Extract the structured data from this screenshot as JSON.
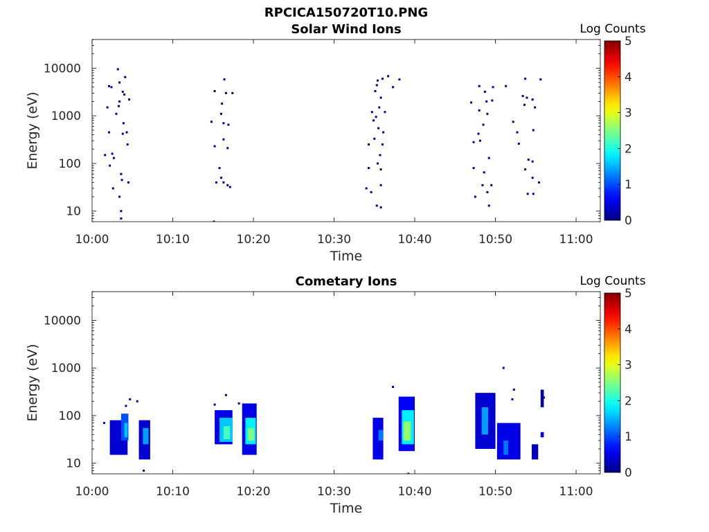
{
  "figure": {
    "title": "RPCICA150720T10.PNG"
  },
  "chart_data": [
    {
      "type": "heatmap",
      "title": "Solar Wind Ions",
      "xlabel": "Time",
      "ylabel": "Energy (eV)",
      "x_ticks": [
        "10:00",
        "10:10",
        "10:20",
        "10:30",
        "10:40",
        "10:50",
        "11:00"
      ],
      "y_ticks": [
        "10",
        "100",
        "1000",
        "10000"
      ],
      "y_scale": "log",
      "ylim": [
        6,
        40000
      ],
      "xlim": [
        "10:00",
        "11:03"
      ],
      "colorbar": {
        "label": "Log Counts",
        "ticks": [
          "0",
          "1",
          "2",
          "3",
          "4",
          "5"
        ],
        "range": [
          0,
          5
        ],
        "colormap": "jet"
      },
      "points": [
        {
          "t": 3.2,
          "e": 9500,
          "v": 0.1
        },
        {
          "t": 2.1,
          "e": 4200,
          "v": 0.1
        },
        {
          "t": 2.4,
          "e": 4000,
          "v": 0.1
        },
        {
          "t": 3.4,
          "e": 5000,
          "v": 0.1
        },
        {
          "t": 4.1,
          "e": 6500,
          "v": 0.1
        },
        {
          "t": 3.8,
          "e": 3200,
          "v": 0.1
        },
        {
          "t": 4.0,
          "e": 2800,
          "v": 0.1
        },
        {
          "t": 3.4,
          "e": 2000,
          "v": 0.1
        },
        {
          "t": 4.6,
          "e": 2200,
          "v": 0.1
        },
        {
          "t": 1.9,
          "e": 1500,
          "v": 0.1
        },
        {
          "t": 3.3,
          "e": 1600,
          "v": 0.1
        },
        {
          "t": 3.0,
          "e": 1100,
          "v": 0.1
        },
        {
          "t": 3.9,
          "e": 700,
          "v": 0.1
        },
        {
          "t": 2.1,
          "e": 450,
          "v": 0.1
        },
        {
          "t": 3.8,
          "e": 420,
          "v": 0.1
        },
        {
          "t": 4.3,
          "e": 450,
          "v": 0.1
        },
        {
          "t": 4.4,
          "e": 250,
          "v": 0.1
        },
        {
          "t": 1.6,
          "e": 150,
          "v": 0.1
        },
        {
          "t": 2.5,
          "e": 160,
          "v": 0.1
        },
        {
          "t": 2.7,
          "e": 130,
          "v": 0.1
        },
        {
          "t": 2.2,
          "e": 90,
          "v": 0.1
        },
        {
          "t": 3.6,
          "e": 60,
          "v": 0.1
        },
        {
          "t": 3.7,
          "e": 45,
          "v": 0.1
        },
        {
          "t": 4.5,
          "e": 40,
          "v": 0.1
        },
        {
          "t": 2.6,
          "e": 30,
          "v": 0.1
        },
        {
          "t": 3.4,
          "e": 20,
          "v": 0.1
        },
        {
          "t": 3.6,
          "e": 10,
          "v": 0.1
        },
        {
          "t": 3.6,
          "e": 7,
          "v": 0.1
        },
        {
          "t": 15.2,
          "e": 3300,
          "v": 0.1
        },
        {
          "t": 16.4,
          "e": 5800,
          "v": 0.1
        },
        {
          "t": 16.6,
          "e": 3000,
          "v": 0.1
        },
        {
          "t": 17.4,
          "e": 3000,
          "v": 0.1
        },
        {
          "t": 16.1,
          "e": 1800,
          "v": 0.1
        },
        {
          "t": 16.0,
          "e": 1100,
          "v": 0.1
        },
        {
          "t": 14.8,
          "e": 750,
          "v": 0.1
        },
        {
          "t": 16.3,
          "e": 700,
          "v": 0.1
        },
        {
          "t": 16.9,
          "e": 650,
          "v": 0.1
        },
        {
          "t": 16.3,
          "e": 320,
          "v": 0.1
        },
        {
          "t": 15.2,
          "e": 230,
          "v": 0.1
        },
        {
          "t": 16.8,
          "e": 210,
          "v": 0.1
        },
        {
          "t": 15.8,
          "e": 80,
          "v": 0.1
        },
        {
          "t": 16.0,
          "e": 50,
          "v": 0.1
        },
        {
          "t": 16.3,
          "e": 40,
          "v": 0.1
        },
        {
          "t": 15.4,
          "e": 40,
          "v": 0.1
        },
        {
          "t": 16.8,
          "e": 35,
          "v": 0.1
        },
        {
          "t": 17.1,
          "e": 32,
          "v": 0.1
        },
        {
          "t": 15.1,
          "e": 6,
          "v": 0.1
        },
        {
          "t": 35.4,
          "e": 5500,
          "v": 0.1
        },
        {
          "t": 36.0,
          "e": 6000,
          "v": 0.1
        },
        {
          "t": 36.7,
          "e": 6800,
          "v": 0.1
        },
        {
          "t": 38.1,
          "e": 5800,
          "v": 0.1
        },
        {
          "t": 35.3,
          "e": 4400,
          "v": 0.1
        },
        {
          "t": 35.1,
          "e": 3300,
          "v": 0.1
        },
        {
          "t": 37.3,
          "e": 4000,
          "v": 0.1
        },
        {
          "t": 35.8,
          "e": 2400,
          "v": 0.1
        },
        {
          "t": 35.6,
          "e": 1500,
          "v": 0.1
        },
        {
          "t": 34.7,
          "e": 1200,
          "v": 0.1
        },
        {
          "t": 36.3,
          "e": 1200,
          "v": 0.1
        },
        {
          "t": 35.2,
          "e": 950,
          "v": 0.1
        },
        {
          "t": 34.9,
          "e": 800,
          "v": 0.1
        },
        {
          "t": 35.5,
          "e": 550,
          "v": 0.1
        },
        {
          "t": 36.1,
          "e": 450,
          "v": 0.1
        },
        {
          "t": 35.0,
          "e": 330,
          "v": 0.1
        },
        {
          "t": 34.3,
          "e": 250,
          "v": 0.1
        },
        {
          "t": 36.0,
          "e": 250,
          "v": 0.1
        },
        {
          "t": 35.7,
          "e": 150,
          "v": 0.1
        },
        {
          "t": 35.4,
          "e": 100,
          "v": 0.1
        },
        {
          "t": 34.3,
          "e": 80,
          "v": 0.1
        },
        {
          "t": 35.8,
          "e": 75,
          "v": 0.1
        },
        {
          "t": 34.0,
          "e": 30,
          "v": 0.1
        },
        {
          "t": 34.6,
          "e": 25,
          "v": 0.1
        },
        {
          "t": 35.8,
          "e": 35,
          "v": 0.1
        },
        {
          "t": 35.3,
          "e": 13,
          "v": 0.1
        },
        {
          "t": 35.8,
          "e": 12,
          "v": 0.1
        },
        {
          "t": 48.0,
          "e": 4200,
          "v": 0.1
        },
        {
          "t": 49.7,
          "e": 4000,
          "v": 0.1
        },
        {
          "t": 51.3,
          "e": 4200,
          "v": 0.1
        },
        {
          "t": 53.7,
          "e": 6000,
          "v": 0.1
        },
        {
          "t": 55.6,
          "e": 5800,
          "v": 0.1
        },
        {
          "t": 48.7,
          "e": 3200,
          "v": 0.1
        },
        {
          "t": 48.9,
          "e": 2000,
          "v": 0.1
        },
        {
          "t": 47.0,
          "e": 1900,
          "v": 0.1
        },
        {
          "t": 49.6,
          "e": 2100,
          "v": 0.1
        },
        {
          "t": 53.4,
          "e": 2600,
          "v": 0.1
        },
        {
          "t": 53.9,
          "e": 2400,
          "v": 0.1
        },
        {
          "t": 54.6,
          "e": 2200,
          "v": 0.1
        },
        {
          "t": 53.6,
          "e": 1700,
          "v": 0.1
        },
        {
          "t": 54.9,
          "e": 1500,
          "v": 0.1
        },
        {
          "t": 48.0,
          "e": 1300,
          "v": 0.1
        },
        {
          "t": 49.0,
          "e": 1100,
          "v": 0.1
        },
        {
          "t": 52.2,
          "e": 750,
          "v": 0.1
        },
        {
          "t": 48.5,
          "e": 650,
          "v": 0.1
        },
        {
          "t": 54.7,
          "e": 500,
          "v": 0.1
        },
        {
          "t": 52.7,
          "e": 450,
          "v": 0.1
        },
        {
          "t": 47.9,
          "e": 420,
          "v": 0.1
        },
        {
          "t": 47.3,
          "e": 280,
          "v": 0.1
        },
        {
          "t": 52.9,
          "e": 260,
          "v": 0.1
        },
        {
          "t": 48.1,
          "e": 300,
          "v": 0.1
        },
        {
          "t": 49.2,
          "e": 130,
          "v": 0.1
        },
        {
          "t": 54.1,
          "e": 120,
          "v": 0.1
        },
        {
          "t": 54.6,
          "e": 110,
          "v": 0.1
        },
        {
          "t": 47.3,
          "e": 80,
          "v": 0.1
        },
        {
          "t": 48.6,
          "e": 65,
          "v": 0.1
        },
        {
          "t": 53.7,
          "e": 75,
          "v": 0.1
        },
        {
          "t": 54.6,
          "e": 50,
          "v": 0.1
        },
        {
          "t": 55.4,
          "e": 40,
          "v": 0.1
        },
        {
          "t": 48.4,
          "e": 35,
          "v": 0.1
        },
        {
          "t": 49.5,
          "e": 35,
          "v": 0.1
        },
        {
          "t": 47.5,
          "e": 20,
          "v": 0.1
        },
        {
          "t": 49.0,
          "e": 25,
          "v": 0.1
        },
        {
          "t": 54.0,
          "e": 23,
          "v": 0.1
        },
        {
          "t": 54.7,
          "e": 23,
          "v": 0.1
        },
        {
          "t": 49.2,
          "e": 13,
          "v": 0.1
        }
      ]
    },
    {
      "type": "heatmap",
      "title": "Cometary Ions",
      "xlabel": "Time",
      "ylabel": "Energy (eV)",
      "x_ticks": [
        "10:00",
        "10:10",
        "10:20",
        "10:30",
        "10:40",
        "10:50",
        "11:00"
      ],
      "y_ticks": [
        "10",
        "100",
        "1000",
        "10000"
      ],
      "y_scale": "log",
      "ylim": [
        6,
        40000
      ],
      "xlim": [
        "10:00",
        "11:03"
      ],
      "colorbar": {
        "label": "Log Counts",
        "ticks": [
          "0",
          "1",
          "2",
          "3",
          "4",
          "5"
        ],
        "range": [
          0,
          5
        ],
        "colormap": "jet"
      },
      "blobs": [
        {
          "t0": 2.2,
          "t1": 4.4,
          "e0": 15,
          "e1": 80,
          "v": 0.4
        },
        {
          "t0": 3.6,
          "t1": 4.5,
          "e0": 30,
          "e1": 110,
          "v": 1.0
        },
        {
          "t0": 4.0,
          "t1": 4.4,
          "e0": 35,
          "e1": 70,
          "v": 1.6
        },
        {
          "t0": 5.8,
          "t1": 7.2,
          "e0": 12,
          "e1": 80,
          "v": 0.4
        },
        {
          "t0": 6.3,
          "t1": 7.0,
          "e0": 25,
          "e1": 55,
          "v": 1.4
        },
        {
          "t0": 15.2,
          "t1": 17.4,
          "e0": 25,
          "e1": 130,
          "v": 0.5
        },
        {
          "t0": 15.8,
          "t1": 17.4,
          "e0": 28,
          "e1": 90,
          "v": 1.6
        },
        {
          "t0": 16.3,
          "t1": 17.1,
          "e0": 32,
          "e1": 60,
          "v": 2.2
        },
        {
          "t0": 18.6,
          "t1": 20.4,
          "e0": 15,
          "e1": 180,
          "v": 0.5
        },
        {
          "t0": 19.0,
          "t1": 20.3,
          "e0": 25,
          "e1": 90,
          "v": 1.8
        },
        {
          "t0": 19.3,
          "t1": 20.1,
          "e0": 30,
          "e1": 55,
          "v": 2.5
        },
        {
          "t0": 34.8,
          "t1": 36.1,
          "e0": 12,
          "e1": 90,
          "v": 0.5
        },
        {
          "t0": 35.5,
          "t1": 36.1,
          "e0": 30,
          "e1": 50,
          "v": 1.2
        },
        {
          "t0": 38.0,
          "t1": 40.0,
          "e0": 18,
          "e1": 250,
          "v": 0.6
        },
        {
          "t0": 38.4,
          "t1": 39.9,
          "e0": 25,
          "e1": 130,
          "v": 1.8
        },
        {
          "t0": 38.6,
          "t1": 39.5,
          "e0": 30,
          "e1": 75,
          "v": 2.6
        },
        {
          "t0": 47.5,
          "t1": 50.0,
          "e0": 20,
          "e1": 300,
          "v": 0.4
        },
        {
          "t0": 48.3,
          "t1": 49.1,
          "e0": 40,
          "e1": 150,
          "v": 1.4
        },
        {
          "t0": 50.2,
          "t1": 53.1,
          "e0": 12,
          "e1": 70,
          "v": 0.5
        },
        {
          "t0": 51.0,
          "t1": 51.6,
          "e0": 15,
          "e1": 30,
          "v": 1.2
        },
        {
          "t0": 54.5,
          "t1": 55.3,
          "e0": 12,
          "e1": 25,
          "v": 0.3
        },
        {
          "t0": 55.6,
          "t1": 56.0,
          "e0": 35,
          "e1": 45,
          "v": 0.5
        },
        {
          "t0": 55.6,
          "t1": 56.0,
          "e0": 150,
          "e1": 350,
          "v": 0.2
        }
      ],
      "points": [
        {
          "t": 4.7,
          "e": 220,
          "v": 0.2
        },
        {
          "t": 5.6,
          "e": 200,
          "v": 0.1
        },
        {
          "t": 4.2,
          "e": 160,
          "v": 0.2
        },
        {
          "t": 1.5,
          "e": 70,
          "v": 0.2
        },
        {
          "t": 6.4,
          "e": 7,
          "v": 0.2
        },
        {
          "t": 16.6,
          "e": 270,
          "v": 0.2
        },
        {
          "t": 18.2,
          "e": 180,
          "v": 0.2
        },
        {
          "t": 15.2,
          "e": 170,
          "v": 0.2
        },
        {
          "t": 37.3,
          "e": 400,
          "v": 0.2
        },
        {
          "t": 39.2,
          "e": 6,
          "v": 0.2
        },
        {
          "t": 51.0,
          "e": 1000,
          "v": 0.2
        },
        {
          "t": 52.3,
          "e": 350,
          "v": 0.2
        },
        {
          "t": 52.1,
          "e": 220,
          "v": 0.2
        },
        {
          "t": 56.0,
          "e": 240,
          "v": 0.2
        }
      ]
    }
  ]
}
